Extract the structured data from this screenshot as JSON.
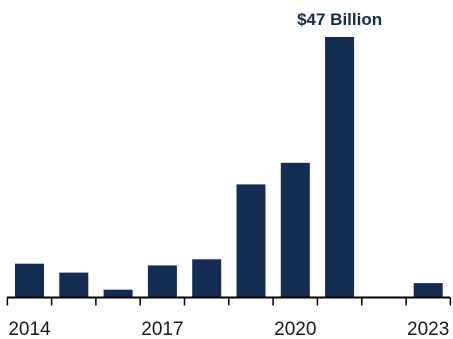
{
  "chart_data": {
    "type": "bar",
    "categories": [
      "2014",
      "2015",
      "2016",
      "2017",
      "2018",
      "2019",
      "2020",
      "2021",
      "2022",
      "2023"
    ],
    "values": [
      6.1,
      4.5,
      1.4,
      5.8,
      6.9,
      20.4,
      24.3,
      47.0,
      0,
      2.6
    ],
    "x_tick_labels": [
      "2014",
      "2017",
      "2020",
      "2023"
    ],
    "annotations": [
      {
        "category": "2021",
        "text": "$47 Billion"
      }
    ],
    "ylim": [
      0,
      50
    ],
    "grid": false,
    "legend": "none",
    "colors": {
      "bar": "#142b52",
      "annotation": "#142b52",
      "axis": "#000000",
      "tick_label": "#1a1a1a"
    }
  }
}
